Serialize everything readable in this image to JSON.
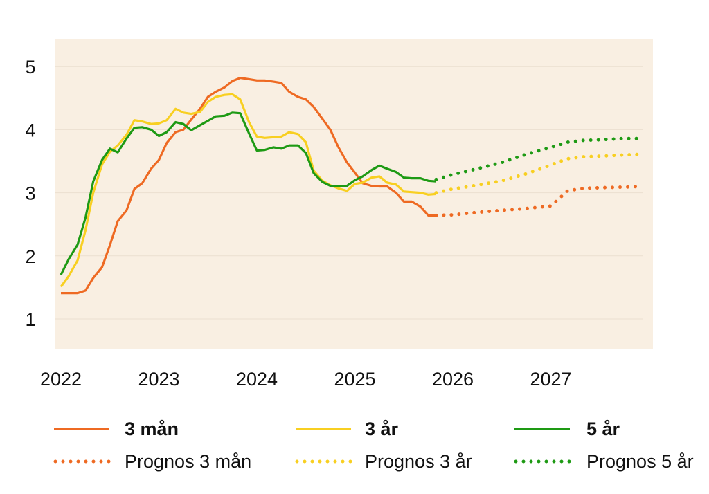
{
  "chart_data": {
    "type": "line",
    "title": "",
    "xlabel": "",
    "ylabel": "",
    "xlim": [
      2022.0,
      2028.0
    ],
    "ylim": [
      0.5,
      5.5
    ],
    "grid": true,
    "legend_position": "bottom",
    "x_ticks": [
      "2022",
      "2023",
      "2024",
      "2025",
      "2026",
      "2027"
    ],
    "y_ticks": [
      "1",
      "2",
      "3",
      "4",
      "5"
    ],
    "colors": {
      "plot_background": "#f9efe2",
      "gridline": "#ebdfd0",
      "orange": "#ee6a23",
      "yellow": "#f8cf21",
      "green": "#1e9a14"
    },
    "series": [
      {
        "name": "3 mån",
        "style": "solid",
        "color": "#ee6a23",
        "points": [
          [
            2022.0,
            1.41
          ],
          [
            2022.1,
            1.41
          ],
          [
            2022.17,
            1.41
          ],
          [
            2022.25,
            1.45
          ],
          [
            2022.33,
            1.65
          ],
          [
            2022.42,
            1.82
          ],
          [
            2022.5,
            2.17
          ],
          [
            2022.58,
            2.55
          ],
          [
            2022.67,
            2.72
          ],
          [
            2022.75,
            3.06
          ],
          [
            2022.83,
            3.15
          ],
          [
            2022.92,
            3.38
          ],
          [
            2023.0,
            3.52
          ],
          [
            2023.08,
            3.79
          ],
          [
            2023.17,
            3.96
          ],
          [
            2023.25,
            4.0
          ],
          [
            2023.33,
            4.16
          ],
          [
            2023.42,
            4.33
          ],
          [
            2023.5,
            4.52
          ],
          [
            2023.58,
            4.6
          ],
          [
            2023.67,
            4.67
          ],
          [
            2023.75,
            4.77
          ],
          [
            2023.83,
            4.82
          ],
          [
            2023.92,
            4.8
          ],
          [
            2024.0,
            4.78
          ],
          [
            2024.08,
            4.78
          ],
          [
            2024.17,
            4.76
          ],
          [
            2024.25,
            4.74
          ],
          [
            2024.33,
            4.6
          ],
          [
            2024.42,
            4.52
          ],
          [
            2024.5,
            4.48
          ],
          [
            2024.58,
            4.36
          ],
          [
            2024.67,
            4.17
          ],
          [
            2024.75,
            4.0
          ],
          [
            2024.83,
            3.73
          ],
          [
            2024.92,
            3.48
          ],
          [
            2025.0,
            3.32
          ],
          [
            2025.08,
            3.15
          ],
          [
            2025.17,
            3.11
          ],
          [
            2025.25,
            3.1
          ],
          [
            2025.33,
            3.1
          ],
          [
            2025.42,
            3.0
          ],
          [
            2025.5,
            2.86
          ],
          [
            2025.58,
            2.86
          ],
          [
            2025.67,
            2.78
          ],
          [
            2025.75,
            2.64
          ],
          [
            2025.83,
            2.64
          ]
        ]
      },
      {
        "name": "3 år",
        "style": "solid",
        "color": "#f8cf21",
        "points": [
          [
            2022.0,
            1.51
          ],
          [
            2022.08,
            1.68
          ],
          [
            2022.17,
            1.93
          ],
          [
            2022.25,
            2.4
          ],
          [
            2022.33,
            3.0
          ],
          [
            2022.42,
            3.45
          ],
          [
            2022.5,
            3.65
          ],
          [
            2022.58,
            3.75
          ],
          [
            2022.67,
            3.92
          ],
          [
            2022.75,
            4.15
          ],
          [
            2022.83,
            4.13
          ],
          [
            2022.92,
            4.09
          ],
          [
            2023.0,
            4.1
          ],
          [
            2023.08,
            4.15
          ],
          [
            2023.17,
            4.33
          ],
          [
            2023.25,
            4.27
          ],
          [
            2023.33,
            4.25
          ],
          [
            2023.42,
            4.28
          ],
          [
            2023.5,
            4.44
          ],
          [
            2023.58,
            4.52
          ],
          [
            2023.67,
            4.55
          ],
          [
            2023.75,
            4.56
          ],
          [
            2023.83,
            4.48
          ],
          [
            2023.92,
            4.12
          ],
          [
            2024.0,
            3.89
          ],
          [
            2024.08,
            3.87
          ],
          [
            2024.17,
            3.88
          ],
          [
            2024.25,
            3.89
          ],
          [
            2024.33,
            3.96
          ],
          [
            2024.42,
            3.93
          ],
          [
            2024.5,
            3.8
          ],
          [
            2024.58,
            3.35
          ],
          [
            2024.67,
            3.19
          ],
          [
            2024.75,
            3.12
          ],
          [
            2024.83,
            3.07
          ],
          [
            2024.92,
            3.03
          ],
          [
            2025.0,
            3.14
          ],
          [
            2025.08,
            3.16
          ],
          [
            2025.17,
            3.24
          ],
          [
            2025.25,
            3.26
          ],
          [
            2025.33,
            3.16
          ],
          [
            2025.42,
            3.13
          ],
          [
            2025.5,
            3.02
          ],
          [
            2025.58,
            3.01
          ],
          [
            2025.67,
            3.0
          ],
          [
            2025.75,
            2.97
          ],
          [
            2025.83,
            2.98
          ]
        ]
      },
      {
        "name": "5 år",
        "style": "solid",
        "color": "#1e9a14",
        "points": [
          [
            2022.0,
            1.7
          ],
          [
            2022.08,
            1.95
          ],
          [
            2022.17,
            2.18
          ],
          [
            2022.25,
            2.6
          ],
          [
            2022.33,
            3.18
          ],
          [
            2022.42,
            3.52
          ],
          [
            2022.5,
            3.7
          ],
          [
            2022.58,
            3.64
          ],
          [
            2022.67,
            3.86
          ],
          [
            2022.75,
            4.03
          ],
          [
            2022.83,
            4.04
          ],
          [
            2022.92,
            4.0
          ],
          [
            2023.0,
            3.9
          ],
          [
            2023.08,
            3.96
          ],
          [
            2023.17,
            4.12
          ],
          [
            2023.25,
            4.09
          ],
          [
            2023.33,
            3.99
          ],
          [
            2023.42,
            4.07
          ],
          [
            2023.5,
            4.14
          ],
          [
            2023.58,
            4.21
          ],
          [
            2023.67,
            4.22
          ],
          [
            2023.75,
            4.27
          ],
          [
            2023.83,
            4.26
          ],
          [
            2023.92,
            3.94
          ],
          [
            2024.0,
            3.67
          ],
          [
            2024.08,
            3.68
          ],
          [
            2024.17,
            3.72
          ],
          [
            2024.25,
            3.7
          ],
          [
            2024.33,
            3.75
          ],
          [
            2024.42,
            3.75
          ],
          [
            2024.5,
            3.63
          ],
          [
            2024.58,
            3.31
          ],
          [
            2024.67,
            3.17
          ],
          [
            2024.75,
            3.11
          ],
          [
            2024.83,
            3.11
          ],
          [
            2024.92,
            3.11
          ],
          [
            2025.0,
            3.2
          ],
          [
            2025.08,
            3.26
          ],
          [
            2025.17,
            3.36
          ],
          [
            2025.25,
            3.43
          ],
          [
            2025.33,
            3.38
          ],
          [
            2025.42,
            3.33
          ],
          [
            2025.5,
            3.24
          ],
          [
            2025.58,
            3.23
          ],
          [
            2025.67,
            3.23
          ],
          [
            2025.75,
            3.19
          ],
          [
            2025.83,
            3.18
          ]
        ]
      },
      {
        "name": "Prognos 3 mån",
        "style": "dotted",
        "color": "#ee6a23",
        "points": [
          [
            2025.83,
            2.64
          ],
          [
            2026.0,
            2.65
          ],
          [
            2026.25,
            2.69
          ],
          [
            2026.5,
            2.72
          ],
          [
            2026.75,
            2.75
          ],
          [
            2027.0,
            2.79
          ],
          [
            2027.08,
            2.9
          ],
          [
            2027.17,
            3.03
          ],
          [
            2027.33,
            3.07
          ],
          [
            2027.5,
            3.08
          ],
          [
            2027.75,
            3.09
          ],
          [
            2027.92,
            3.1
          ]
        ]
      },
      {
        "name": "Prognos 3 år",
        "style": "dotted",
        "color": "#f8cf21",
        "points": [
          [
            2025.83,
            3.0
          ],
          [
            2026.0,
            3.06
          ],
          [
            2026.25,
            3.12
          ],
          [
            2026.5,
            3.19
          ],
          [
            2026.75,
            3.3
          ],
          [
            2027.0,
            3.44
          ],
          [
            2027.17,
            3.54
          ],
          [
            2027.33,
            3.57
          ],
          [
            2027.5,
            3.58
          ],
          [
            2027.75,
            3.6
          ],
          [
            2027.92,
            3.61
          ]
        ]
      },
      {
        "name": "Prognos 5 år",
        "style": "dotted",
        "color": "#1e9a14",
        "points": [
          [
            2025.83,
            3.21
          ],
          [
            2026.0,
            3.29
          ],
          [
            2026.25,
            3.38
          ],
          [
            2026.5,
            3.48
          ],
          [
            2026.75,
            3.61
          ],
          [
            2027.0,
            3.72
          ],
          [
            2027.17,
            3.8
          ],
          [
            2027.33,
            3.83
          ],
          [
            2027.5,
            3.84
          ],
          [
            2027.75,
            3.86
          ],
          [
            2027.92,
            3.86
          ]
        ]
      }
    ]
  },
  "legend": {
    "items": [
      {
        "label": "3 mån",
        "color": "#ee6a23",
        "style": "solid",
        "bold": true
      },
      {
        "label": "3 år",
        "color": "#f8cf21",
        "style": "solid",
        "bold": true
      },
      {
        "label": "5 år",
        "color": "#1e9a14",
        "style": "solid",
        "bold": true
      },
      {
        "label": "Prognos 3 mån",
        "color": "#ee6a23",
        "style": "dotted",
        "bold": false
      },
      {
        "label": "Prognos 3 år",
        "color": "#f8cf21",
        "style": "dotted",
        "bold": false
      },
      {
        "label": "Prognos 5 år",
        "color": "#1e9a14",
        "style": "dotted",
        "bold": false
      }
    ]
  }
}
